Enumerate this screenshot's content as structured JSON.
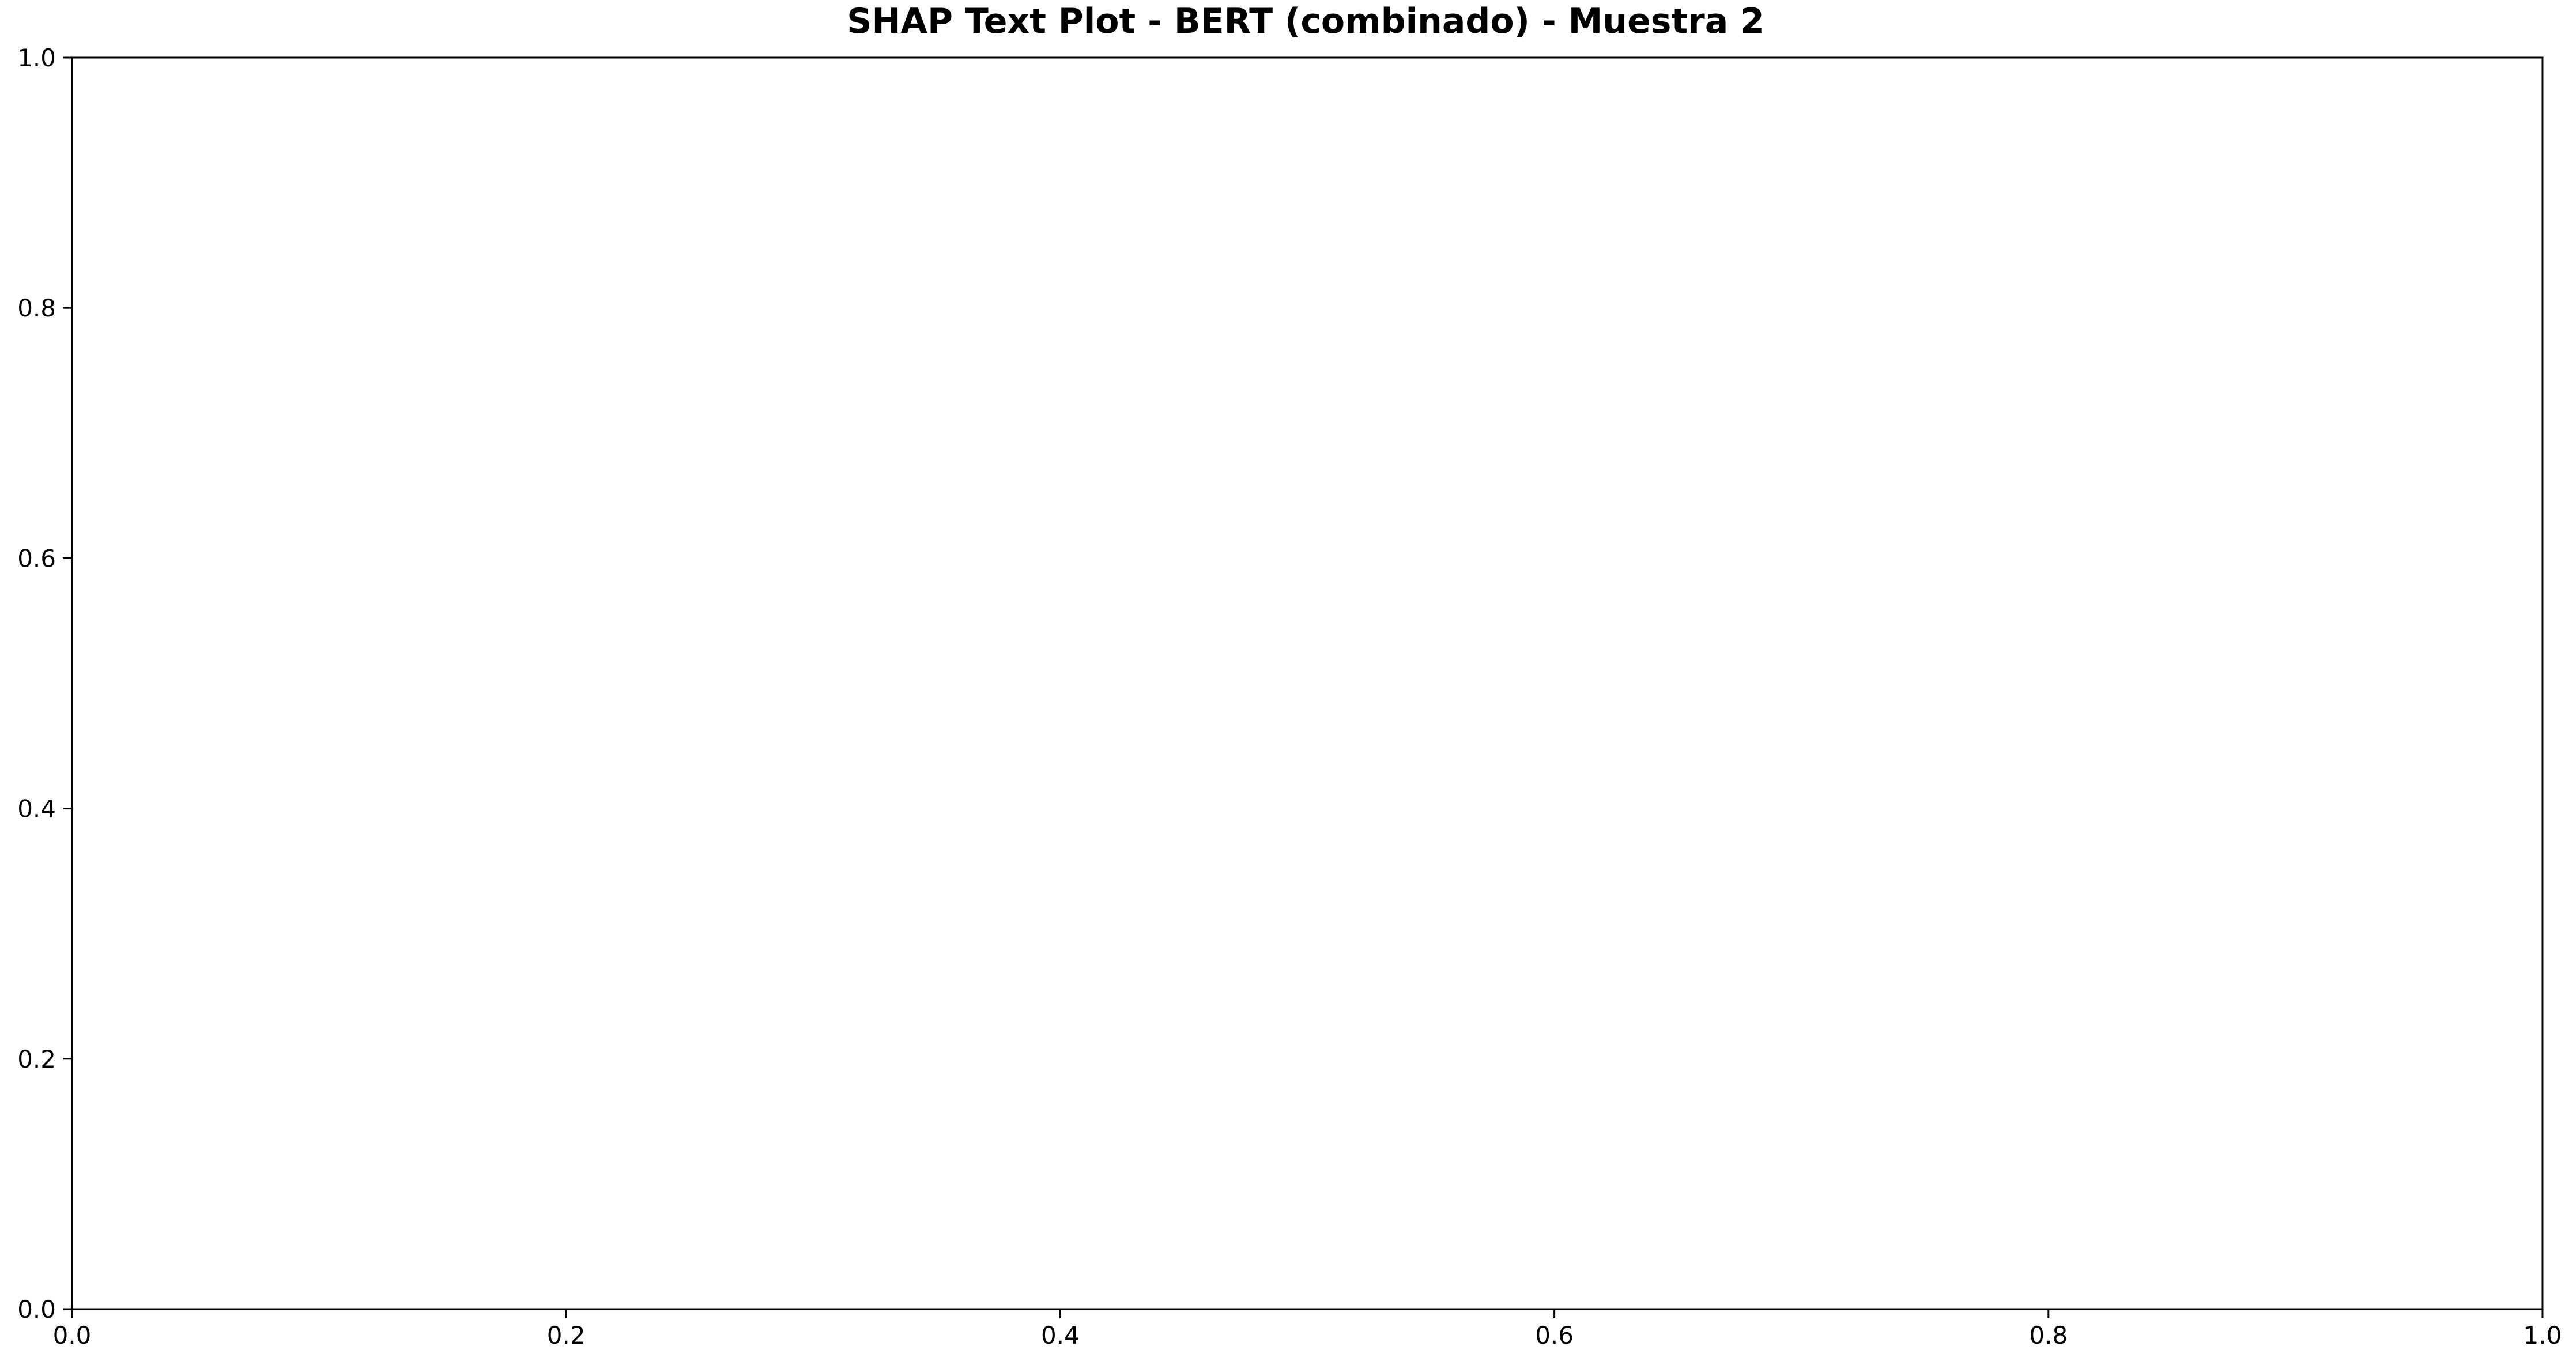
{
  "chart_data": {
    "type": "table",
    "title": "SHAP Text Plot - BERT (combinado) - Muestra 2",
    "xlabel": "",
    "ylabel": "",
    "xlim": [
      0.0,
      1.0
    ],
    "ylim": [
      0.0,
      1.0
    ],
    "x_ticks": [
      "0.0",
      "0.2",
      "0.4",
      "0.6",
      "0.8",
      "1.0"
    ],
    "y_ticks": [
      "0.0",
      "0.2",
      "0.4",
      "0.6",
      "0.8",
      "1.0"
    ],
    "x_tick_values": [
      0.0,
      0.2,
      0.4,
      0.6,
      0.8,
      1.0
    ],
    "y_tick_values": [
      0.0,
      0.2,
      0.4,
      0.6,
      0.8,
      1.0
    ],
    "grid": false,
    "legend": "none",
    "series": [],
    "colors": {
      "axes": "#000000",
      "background": "#ffffff",
      "text": "#000000"
    }
  }
}
